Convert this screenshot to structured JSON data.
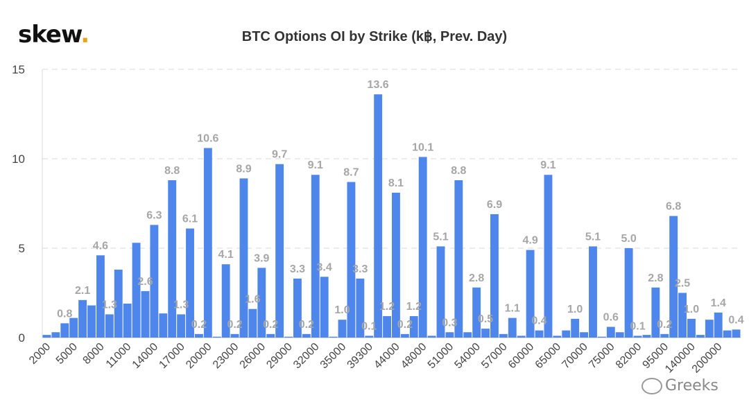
{
  "brand": {
    "name": "skew",
    "dot": "."
  },
  "watermark": {
    "text": "Greeks"
  },
  "chart_data": {
    "type": "bar",
    "title": "BTC Options OI by Strike (k฿, Prev. Day)",
    "ylim": [
      0,
      15
    ],
    "yticks": [
      0,
      5,
      10,
      15
    ],
    "grid": true,
    "bar_color": "#4f86ec",
    "label_color": "#a6a6a6",
    "x_tick_labels": [
      "2000",
      "5000",
      "8000",
      "11000",
      "14000",
      "17000",
      "20000",
      "23000",
      "26000",
      "29000",
      "32000",
      "35000",
      "39300",
      "44000",
      "48000",
      "51000",
      "54000",
      "57000",
      "60000",
      "65000",
      "70000",
      "75000",
      "82000",
      "95000",
      "140000",
      "200000"
    ],
    "values": [
      0.15,
      0.3,
      0.8,
      1.1,
      2.1,
      1.8,
      4.6,
      1.3,
      3.8,
      1.9,
      5.3,
      2.6,
      6.3,
      1.35,
      8.8,
      1.3,
      6.1,
      0.2,
      10.6,
      0.05,
      4.1,
      0.2,
      8.9,
      1.6,
      3.9,
      0.2,
      9.7,
      0.05,
      3.3,
      0.2,
      9.1,
      3.4,
      0.05,
      1.0,
      8.7,
      3.3,
      0.1,
      13.6,
      1.2,
      8.1,
      0.2,
      1.2,
      10.1,
      0.1,
      5.1,
      0.3,
      8.8,
      0.3,
      2.8,
      0.5,
      6.9,
      0.2,
      1.1,
      0.1,
      4.9,
      0.4,
      9.1,
      0.1,
      0.4,
      1.05,
      0.3,
      5.1,
      0.05,
      0.6,
      0.3,
      5.0,
      0.1,
      0.15,
      2.8,
      0.2,
      6.8,
      2.5,
      1.05,
      0.15,
      1.0,
      1.4,
      0.4,
      0.45
    ],
    "data_labels": [
      {
        "index": 2,
        "text": "0.8"
      },
      {
        "index": 4,
        "text": "2.1"
      },
      {
        "index": 6,
        "text": "4.6"
      },
      {
        "index": 7,
        "text": "1.3"
      },
      {
        "index": 11,
        "text": "2.6"
      },
      {
        "index": 12,
        "text": "6.3"
      },
      {
        "index": 14,
        "text": "8.8"
      },
      {
        "index": 15,
        "text": "1.3"
      },
      {
        "index": 16,
        "text": "6.1"
      },
      {
        "index": 17,
        "text": "0.2"
      },
      {
        "index": 18,
        "text": "10.6"
      },
      {
        "index": 20,
        "text": "4.1"
      },
      {
        "index": 21,
        "text": "0.2"
      },
      {
        "index": 22,
        "text": "8.9"
      },
      {
        "index": 23,
        "text": "1.6"
      },
      {
        "index": 24,
        "text": "3.9"
      },
      {
        "index": 25,
        "text": "0.2"
      },
      {
        "index": 26,
        "text": "9.7"
      },
      {
        "index": 28,
        "text": "3.3"
      },
      {
        "index": 29,
        "text": "0.2"
      },
      {
        "index": 30,
        "text": "9.1"
      },
      {
        "index": 31,
        "text": "3.4"
      },
      {
        "index": 33,
        "text": "1.0"
      },
      {
        "index": 34,
        "text": "8.7"
      },
      {
        "index": 35,
        "text": "3.3"
      },
      {
        "index": 36,
        "text": "0.1"
      },
      {
        "index": 37,
        "text": "13.6"
      },
      {
        "index": 38,
        "text": "1.2"
      },
      {
        "index": 39,
        "text": "8.1"
      },
      {
        "index": 40,
        "text": "0.2"
      },
      {
        "index": 41,
        "text": "1.2"
      },
      {
        "index": 42,
        "text": "10.1"
      },
      {
        "index": 44,
        "text": "5.1"
      },
      {
        "index": 45,
        "text": "0.3"
      },
      {
        "index": 46,
        "text": "8.8"
      },
      {
        "index": 48,
        "text": "2.8"
      },
      {
        "index": 49,
        "text": "0.5"
      },
      {
        "index": 50,
        "text": "6.9"
      },
      {
        "index": 52,
        "text": "1.1"
      },
      {
        "index": 54,
        "text": "4.9"
      },
      {
        "index": 55,
        "text": "0.4"
      },
      {
        "index": 56,
        "text": "9.1"
      },
      {
        "index": 59,
        "text": "1.0"
      },
      {
        "index": 61,
        "text": "5.1"
      },
      {
        "index": 63,
        "text": "0.6"
      },
      {
        "index": 65,
        "text": "5.0"
      },
      {
        "index": 66,
        "text": "0.1"
      },
      {
        "index": 68,
        "text": "2.8"
      },
      {
        "index": 69,
        "text": "0.2"
      },
      {
        "index": 70,
        "text": "6.8"
      },
      {
        "index": 71,
        "text": "2.5"
      },
      {
        "index": 72,
        "text": "1.0"
      },
      {
        "index": 75,
        "text": "1.4"
      },
      {
        "index": 77,
        "text": "0.4"
      }
    ]
  }
}
